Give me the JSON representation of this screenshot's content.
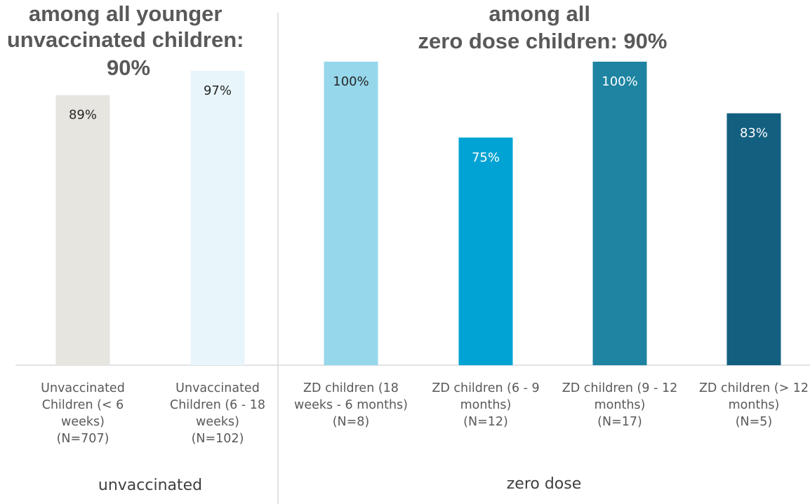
{
  "titles": {
    "left": [
      "among all younger",
      "unvaccinated children:",
      "90%"
    ],
    "right": [
      "among all",
      "zero dose children: 90%"
    ]
  },
  "groups": [
    "unvaccinated",
    "zero dose"
  ],
  "chart_data": {
    "type": "bar",
    "ylim": [
      0,
      100
    ],
    "grid": false,
    "categories": [
      [
        "Unvaccinated",
        "Children (< 6",
        "weeks)",
        "(N=707)"
      ],
      [
        "Unvaccinated",
        "Children (6 - 18",
        "weeks)",
        "(N=102)"
      ],
      [
        "ZD children (18",
        "weeks - 6 months)",
        "(N=8)"
      ],
      [
        "ZD children (6 - 9",
        "months)",
        "(N=12)"
      ],
      [
        "ZD children (9 - 12",
        "months)",
        "(N=17)"
      ],
      [
        "ZD children (> 12",
        "months)",
        "(N=5)"
      ]
    ],
    "values": [
      89,
      97,
      100,
      75,
      100,
      83
    ],
    "labels": [
      "89%",
      "97%",
      "100%",
      "75%",
      "100%",
      "83%"
    ],
    "colors": [
      "#E7E5E0",
      "#E8F5FB",
      "#96D7EB",
      "#00A3D4",
      "#1E84A2",
      "#135F80"
    ],
    "label_colors": [
      "#262626",
      "#262626",
      "#262626",
      "#ffffff",
      "#ffffff",
      "#ffffff"
    ]
  }
}
